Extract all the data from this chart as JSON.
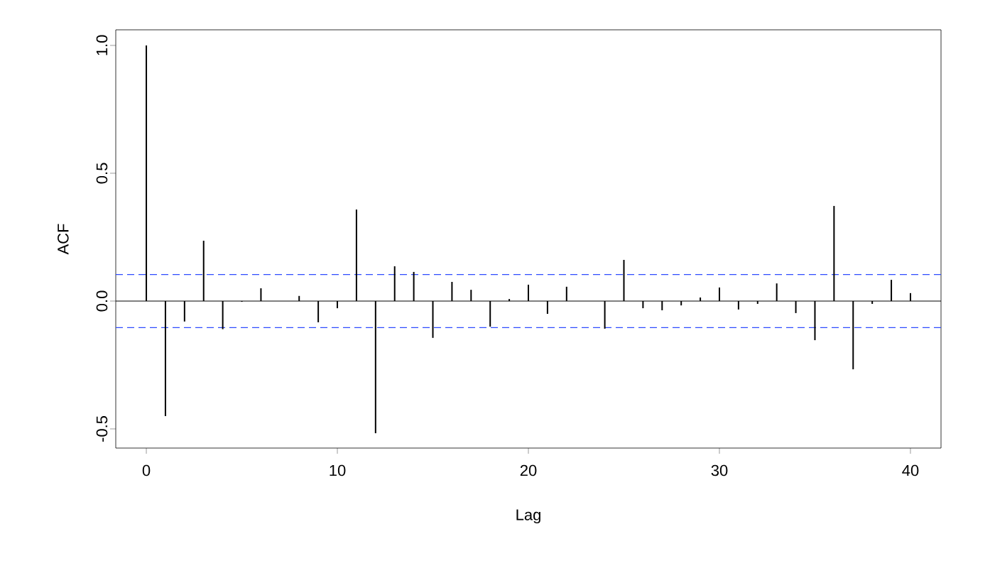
{
  "chart_data": {
    "type": "bar",
    "xlabel": "Lag",
    "ylabel": "ACF",
    "color": "#000000",
    "x": [
      0,
      1,
      2,
      3,
      4,
      5,
      6,
      7,
      8,
      9,
      10,
      11,
      12,
      13,
      14,
      15,
      16,
      17,
      18,
      19,
      20,
      21,
      22,
      23,
      24,
      25,
      26,
      27,
      28,
      29,
      30,
      31,
      32,
      33,
      34,
      35,
      36,
      37,
      38,
      39,
      40
    ],
    "values": [
      1.0,
      -0.45,
      -0.08,
      0.236,
      -0.11,
      -0.003,
      0.05,
      0.0,
      0.02,
      -0.083,
      -0.028,
      0.358,
      -0.517,
      0.136,
      0.114,
      -0.144,
      0.075,
      0.044,
      -0.1,
      0.008,
      0.064,
      -0.05,
      0.056,
      0.0,
      -0.108,
      0.161,
      -0.028,
      -0.036,
      -0.017,
      0.014,
      0.053,
      -0.033,
      -0.011,
      0.069,
      -0.047,
      -0.153,
      0.372,
      -0.267,
      -0.011,
      0.083,
      0.031
    ],
    "xlim": [
      -1.6,
      41.6
    ],
    "ylim": [
      -0.575,
      1.061
    ],
    "xticks": [
      0,
      10,
      20,
      30,
      40
    ],
    "yticks": [
      {
        "value": -0.5,
        "label": "-0.5"
      },
      {
        "value": 0,
        "label": "0.0"
      },
      {
        "value": 0.5,
        "label": "0.5"
      },
      {
        "value": 1.0,
        "label": "1.0"
      }
    ],
    "ref_lines": [
      {
        "axis": "y",
        "value": 0,
        "color": "#000000",
        "line_style": "solid"
      },
      {
        "axis": "y",
        "value": 0.104,
        "color": "#2e4bff",
        "line_style": "dashed"
      },
      {
        "axis": "y",
        "value": -0.104,
        "color": "#2e4bff",
        "line_style": "dashed"
      }
    ],
    "marker": "none"
  }
}
